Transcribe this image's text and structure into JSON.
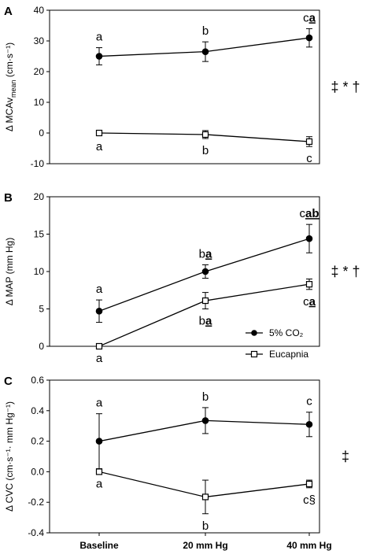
{
  "x_categories": [
    "Baseline",
    "20 mm Hg",
    "40 mm Hg"
  ],
  "legend": [
    {
      "name": "5% CO₂",
      "marker": "filled-circle"
    },
    {
      "name": "Eucapnia",
      "marker": "open-square"
    }
  ],
  "chart_data": [
    {
      "type": "line",
      "panel": "A",
      "ylabel": "Δ MCAv",
      "ylabel_sub": "mean",
      "ylabel_unit": " (cm·s⁻¹)",
      "ylim": [
        -10,
        40
      ],
      "yticks": [
        -10,
        0,
        10,
        20,
        30,
        40
      ],
      "categories": [
        "Baseline",
        "20 mm Hg",
        "40 mm Hg"
      ],
      "series": [
        {
          "name": "5% CO₂",
          "values": [
            25,
            26.5,
            31
          ],
          "errors": [
            2.8,
            3.2,
            3.0
          ],
          "labels": [
            [
              "a",
              ""
            ],
            [
              "b",
              ""
            ],
            [
              "c",
              "a"
            ]
          ]
        },
        {
          "name": "Eucapnia",
          "values": [
            0,
            -0.5,
            -2.8
          ],
          "errors": [
            0.5,
            1.3,
            1.6
          ],
          "labels": [
            [
              "a",
              ""
            ],
            [
              "b",
              ""
            ],
            [
              "c",
              ""
            ]
          ]
        }
      ],
      "significance": "‡ * †"
    },
    {
      "type": "line",
      "panel": "B",
      "ylabel": "Δ MAP (mm Hg)",
      "ylabel_sub": "",
      "ylabel_unit": "",
      "ylim": [
        0,
        20
      ],
      "yticks": [
        0,
        5,
        10,
        15,
        20
      ],
      "categories": [
        "Baseline",
        "20 mm Hg",
        "40 mm Hg"
      ],
      "series": [
        {
          "name": "5% CO₂",
          "values": [
            4.7,
            10.0,
            14.4
          ],
          "errors": [
            1.5,
            0.9,
            1.9
          ],
          "labels": [
            [
              "a",
              ""
            ],
            [
              "b",
              "a"
            ],
            [
              "c",
              "ab"
            ]
          ]
        },
        {
          "name": "Eucapnia",
          "values": [
            0,
            6.1,
            8.3
          ],
          "errors": [
            0,
            1.1,
            0.7
          ],
          "labels": [
            [
              "a",
              ""
            ],
            [
              "b",
              "a"
            ],
            [
              "c",
              "a"
            ]
          ]
        }
      ],
      "significance": "‡ * †"
    },
    {
      "type": "line",
      "panel": "C",
      "ylabel": "Δ CVC (cm·s⁻¹· mm Hg⁻¹)",
      "ylabel_sub": "",
      "ylabel_unit": "",
      "ylim": [
        -0.4,
        0.6
      ],
      "yticks": [
        -0.4,
        -0.2,
        0.0,
        0.2,
        0.4,
        0.6
      ],
      "categories": [
        "Baseline",
        "20 mm Hg",
        "40 mm Hg"
      ],
      "series": [
        {
          "name": "5% CO₂",
          "values": [
            0.2,
            0.335,
            0.31
          ],
          "errors": [
            0.18,
            0.085,
            0.08
          ],
          "labels": [
            [
              "a",
              ""
            ],
            [
              "b",
              ""
            ],
            [
              "c",
              ""
            ]
          ]
        },
        {
          "name": "Eucapnia",
          "values": [
            0,
            -0.165,
            -0.08
          ],
          "errors": [
            0,
            0.11,
            0.025
          ],
          "labels": [
            [
              "a",
              ""
            ],
            [
              "b",
              ""
            ],
            [
              "c§",
              ""
            ]
          ]
        }
      ],
      "significance": "‡"
    }
  ]
}
